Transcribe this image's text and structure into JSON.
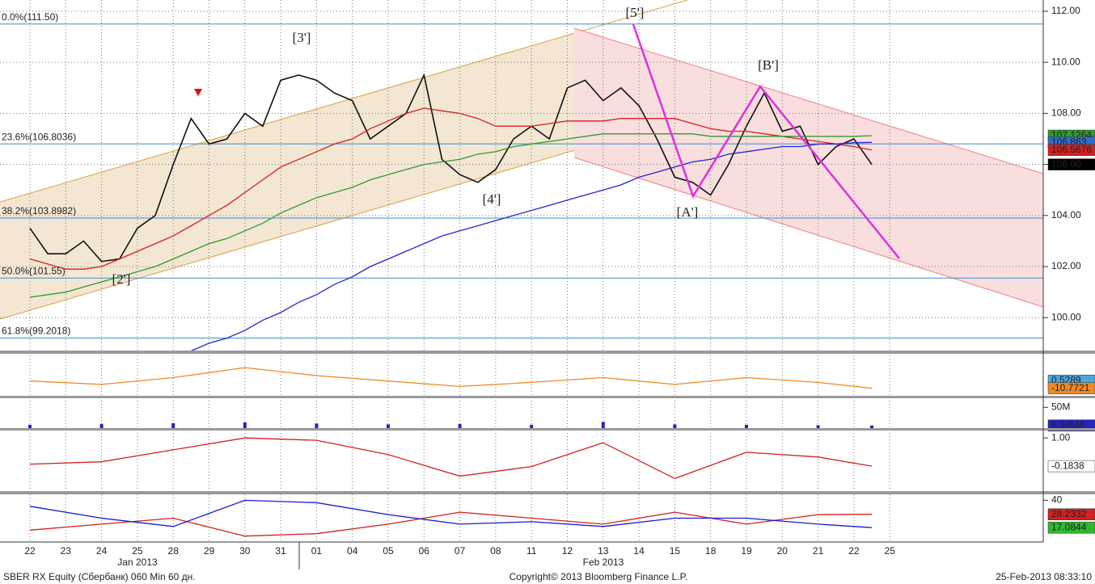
{
  "chart_data": [
    {
      "type": "line",
      "categories": [
        "22",
        null,
        "23",
        null,
        "24",
        null,
        "25",
        null,
        "28",
        null,
        "29",
        null,
        "30",
        null,
        "31",
        null,
        "01",
        null,
        "04",
        null,
        "05",
        null,
        "06",
        null,
        "07",
        null,
        "08",
        null,
        "11",
        null,
        "12",
        null,
        "13",
        null,
        "14",
        null,
        "15",
        null,
        "18",
        null,
        "19",
        null,
        "20",
        null,
        "21",
        null,
        "22",
        null,
        "25"
      ],
      "month_labels": [
        "Jan 2013",
        "Feb 2013"
      ],
      "ylim": [
        98.68,
        112.44
      ],
      "yticks": [
        {
          "value": 112,
          "label": "112.00"
        },
        {
          "value": 110,
          "label": "110.00"
        },
        {
          "value": 108,
          "label": "108.00"
        },
        {
          "value": 106,
          "label": "106.00"
        },
        {
          "value": 104,
          "label": "104.00"
        },
        {
          "value": 102,
          "label": "102.00"
        },
        {
          "value": 100,
          "label": "100.00"
        }
      ],
      "grid": true,
      "fib_levels": [
        {
          "value": 111.5,
          "label": "0.0%(111.50)"
        },
        {
          "value": 106.8036,
          "label": "23.6%(106.8036)"
        },
        {
          "value": 103.8982,
          "label": "38.2%(103.8982)"
        },
        {
          "value": 101.55,
          "label": "50.0%(101.55)"
        },
        {
          "value": 99.2018,
          "label": "61.8%(99.2018)"
        }
      ],
      "annotations": [
        "[3']",
        "[2']",
        "[4']",
        "[5']",
        "[A']",
        "[B']"
      ],
      "series": [
        {
          "color": "#111111",
          "values": [
            103.5,
            102.5,
            102.5,
            103.0,
            102.2,
            102.3,
            103.5,
            104.0,
            106.0,
            107.8,
            106.8,
            107.0,
            108.0,
            107.5,
            109.3,
            109.5,
            109.3,
            108.8,
            108.5,
            107.0,
            107.5,
            108.0,
            109.5,
            106.2,
            105.6,
            105.3,
            105.8,
            107.0,
            107.5,
            107.0,
            109.0,
            109.3,
            108.5,
            109.0,
            108.3,
            107.0,
            105.5,
            105.3,
            104.8,
            106.0,
            107.5,
            108.8,
            107.3,
            107.5,
            106.0,
            106.7,
            107.0,
            106.0,
            null
          ]
        },
        {
          "color": "#d42020",
          "values": [
            102.3,
            102.1,
            101.9,
            101.9,
            102.0,
            102.3,
            102.6,
            102.9,
            103.2,
            103.6,
            104.0,
            104.4,
            104.9,
            105.4,
            105.9,
            106.2,
            106.5,
            106.8,
            107.0,
            107.4,
            107.7,
            108.0,
            108.2,
            108.1,
            108.0,
            107.8,
            107.5,
            107.5,
            107.5,
            107.6,
            107.7,
            107.7,
            107.7,
            107.8,
            107.8,
            107.8,
            107.8,
            107.6,
            107.4,
            107.3,
            107.3,
            107.2,
            107.1,
            107.0,
            106.9,
            106.8,
            106.7,
            106.5676,
            null
          ]
        },
        {
          "color": "#2f9a2f",
          "values": [
            100.8,
            100.9,
            101.0,
            101.2,
            101.4,
            101.6,
            101.8,
            102.0,
            102.3,
            102.6,
            102.9,
            103.1,
            103.4,
            103.7,
            104.1,
            104.4,
            104.7,
            104.9,
            105.1,
            105.4,
            105.6,
            105.8,
            106.0,
            106.1,
            106.2,
            106.4,
            106.5,
            106.7,
            106.8,
            106.9,
            107.0,
            107.1,
            107.2,
            107.2,
            107.2,
            107.2,
            107.2,
            107.2,
            107.1,
            107.1,
            107.1,
            107.1,
            107.1,
            107.1,
            107.1,
            107.1,
            107.1,
            107.1264,
            null
          ]
        },
        {
          "color": "#2424d0",
          "values": [
            null,
            null,
            null,
            null,
            null,
            null,
            null,
            null,
            null,
            98.7,
            99.0,
            99.2,
            99.5,
            99.9,
            100.2,
            100.6,
            100.9,
            101.3,
            101.6,
            102.0,
            102.3,
            102.6,
            102.9,
            103.2,
            103.4,
            103.6,
            103.8,
            104.0,
            104.2,
            104.4,
            104.6,
            104.8,
            105.0,
            105.2,
            105.5,
            105.7,
            105.9,
            106.1,
            106.2,
            106.4,
            106.5,
            106.6,
            106.7,
            106.7,
            106.8,
            106.8,
            106.85,
            106.863,
            null
          ]
        }
      ],
      "right_labels": [
        {
          "value": 107.1264,
          "label": "107.1264",
          "color": "#2f9a2f"
        },
        {
          "value": 106.863,
          "label": "106.863",
          "color": "#2b6fd0"
        },
        {
          "value": 106.5676,
          "label": "106.5676",
          "color": "#d42020"
        },
        {
          "value": 106,
          "label": "106.00",
          "color": "#000000"
        }
      ],
      "footer": {
        "left": "SBER RX Equity (Сбербанк) 060 Min 60 дн.",
        "center": "Copyright© 2013 Bloomberg Finance L.P.",
        "right": "25-Feb-2013 08:33:10"
      }
    },
    {
      "type": "line",
      "ylim": [
        -22,
        40.5
      ],
      "x": [
        0,
        4,
        8,
        12,
        16,
        20,
        24,
        28,
        32,
        36,
        40,
        44,
        47
      ],
      "series": [
        {
          "color": "#f08a20",
          "values": [
            0,
            -5,
            5,
            20,
            8,
            0,
            -8,
            -2,
            5,
            -5,
            5,
            -2,
            -10.7721
          ]
        }
      ],
      "right_labels": [
        {
          "value": 0.5289,
          "label": "0.5289",
          "color": "#4aa8e0"
        },
        {
          "value": -10.7721,
          "label": "-10.7721",
          "color": "#f08a20"
        }
      ]
    },
    {
      "type": "bar",
      "ylim": [
        0,
        72000000
      ],
      "yticks": [
        {
          "value": 50000000,
          "label": "50M"
        }
      ],
      "x": [
        0,
        4,
        8,
        12,
        16,
        20,
        24,
        28,
        32,
        36,
        40,
        44,
        47
      ],
      "values": [
        8000000,
        10000000,
        12000000,
        14000000,
        11000000,
        9000000,
        10000000,
        8000000,
        15000000,
        9000000,
        8000000,
        7000000,
        6345000
      ],
      "color": "#2424c0",
      "right_labels": [
        {
          "value": 6345000,
          "label": "6.345M",
          "color": "#2424c0"
        }
      ]
    },
    {
      "type": "line",
      "ylim": [
        -1.23,
        1.31
      ],
      "yticks": [
        {
          "value": 1,
          "label": "1.00"
        }
      ],
      "x": [
        0,
        4,
        8,
        12,
        16,
        20,
        24,
        28,
        32,
        36,
        40,
        44,
        47
      ],
      "series": [
        {
          "color": "#d42020",
          "values": [
            -0.1,
            0.0,
            0.5,
            1.0,
            0.9,
            0.3,
            -0.6,
            -0.2,
            0.8,
            -0.7,
            0.4,
            0.2,
            -0.1838
          ]
        }
      ],
      "right_labels": [
        {
          "value": -0.1838,
          "label": "-0.1838",
          "color": "#ffffff"
        }
      ]
    },
    {
      "type": "line",
      "ylim": [
        5.7,
        45
      ],
      "yticks": [
        40
      ],
      "x": [
        0,
        4,
        8,
        12,
        16,
        20,
        24,
        28,
        32,
        36,
        40,
        44,
        47
      ],
      "series": [
        {
          "color": "#d42020",
          "values": [
            15,
            20,
            25,
            10,
            12,
            20,
            30,
            25,
            20,
            30,
            20,
            28,
            28.2332
          ]
        },
        {
          "color": "#1a1ad0",
          "values": [
            35,
            25,
            18,
            40,
            38,
            28,
            20,
            22,
            18,
            25,
            25,
            20,
            17.0844
          ]
        }
      ],
      "right_labels": [
        {
          "value": 28.2332,
          "label": "28.2332",
          "color": "#d42020"
        },
        {
          "value": 17.0844,
          "label": "17.0844",
          "color": "#2fb82f"
        }
      ]
    }
  ]
}
